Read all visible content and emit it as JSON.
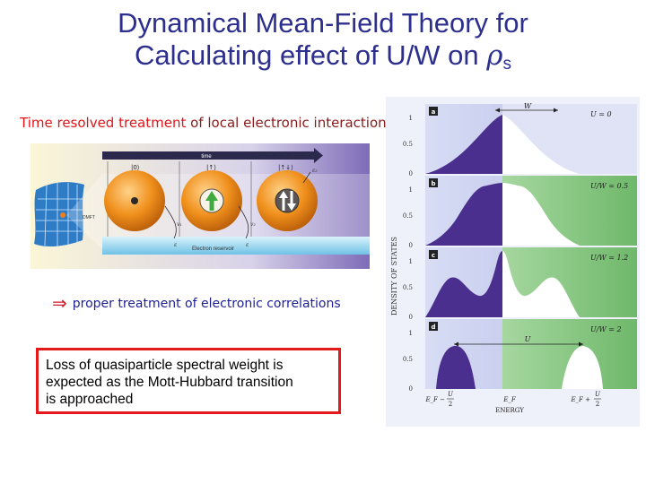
{
  "title": {
    "line1": "Dynamical Mean-Field Theory for",
    "line2_prefix": "Calculating effect of U/W on ",
    "rho": "ρ",
    "subscript": "s"
  },
  "left_heading": {
    "red_part": "Time resolved treatment ",
    "rest": "of local electronic interactions:"
  },
  "time_diagram": {
    "time_label": "time",
    "states": [
      "|0⟩",
      "|↑⟩",
      "|↑↓⟩"
    ],
    "impurity_label": "DMFT",
    "reservoir_label": "Electron reservoir",
    "hop_labels": [
      "v₁",
      "ε",
      "v₂",
      "ε",
      "ε₂"
    ],
    "colors": {
      "sphere": "#e8891a",
      "bath": "#8fd0ee",
      "arrow_green": "#3faa3f",
      "backdrop": "#b4a8d8"
    }
  },
  "correlations_line": {
    "arrow": "⇒",
    "text": "proper treatment of electronic correlations"
  },
  "loss_text": {
    "line1": "Loss of quasiparticle spectral weight is",
    "line2": "expected as the Mott-Hubbard transition",
    "line3": "is approached"
  },
  "dos_figure": {
    "y_axis_label": "DENSITY OF STATES",
    "x_axis_label": "ENERGY",
    "panels": [
      {
        "letter": "a",
        "label": "U = 0",
        "ticks": [
          "1",
          "0.5",
          "0"
        ],
        "annotation": "W"
      },
      {
        "letter": "b",
        "label": "U/W = 0.5",
        "ticks": [
          "1",
          "0.5",
          "0"
        ]
      },
      {
        "letter": "c",
        "label": "U/W = 1.2",
        "ticks": [
          "1",
          "0.5",
          "0"
        ]
      },
      {
        "letter": "d",
        "label": "U/W = 2",
        "ticks": [
          "1",
          "0.5",
          "0"
        ],
        "annotation": "U"
      }
    ],
    "x_ticks": {
      "left_main": "E_F −",
      "left_frac_num": "U",
      "left_frac_den": "2",
      "mid": "E_F",
      "right_main": "E_F +",
      "right_frac_num": "U",
      "right_frac_den": "2"
    },
    "colors": {
      "filled": "#4b2f8e",
      "empty": "#ffffff",
      "bg_blue": "#c9cfee",
      "bg_green": "#7ec07a"
    }
  }
}
